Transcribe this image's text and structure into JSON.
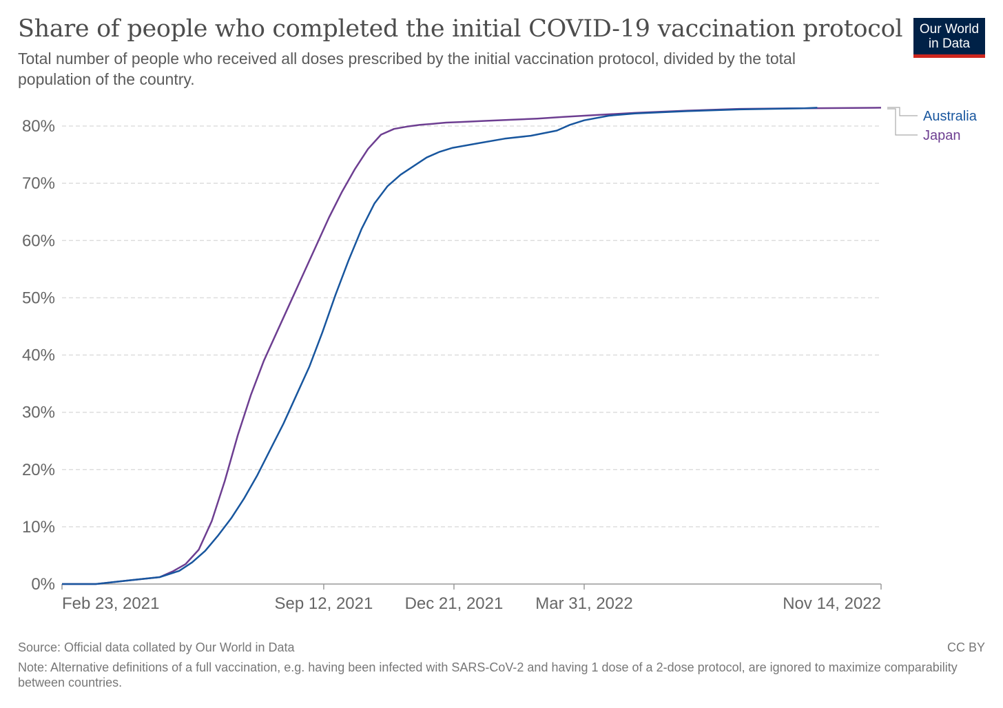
{
  "header": {
    "title": "Share of people who completed the initial COVID-19 vaccination protocol",
    "subtitle": "Total number of people who received all doses prescribed by the initial vaccination protocol, divided by the total population of the country."
  },
  "logo": {
    "line1": "Our World",
    "line2": "in Data"
  },
  "footer": {
    "source": "Source: Official data collated by Our World in Data",
    "license": "CC BY",
    "note": "Note: Alternative definitions of a full vaccination, e.g. having been infected with SARS-CoV-2 and having 1 dose of a 2-dose protocol, are ignored to maximize comparability between countries."
  },
  "colors": {
    "australia": "#18569e",
    "japan": "#6d3e91",
    "grid": "#dddddd",
    "axis": "#999999",
    "text": "#666666"
  },
  "chart_data": {
    "type": "line",
    "title": "Share of people who completed the initial COVID-19 vaccination protocol",
    "xlabel": "",
    "ylabel": "",
    "x_unit": "days since Feb 23, 2021",
    "xlim": [
      0,
      629
    ],
    "ylim": [
      0,
      80
    ],
    "grid": true,
    "y_ticks": [
      0,
      10,
      20,
      30,
      40,
      50,
      60,
      70,
      80
    ],
    "y_tick_labels": [
      "0%",
      "10%",
      "20%",
      "30%",
      "40%",
      "50%",
      "60%",
      "70%",
      "80%"
    ],
    "x_ticks": [
      0,
      201,
      301,
      401,
      629
    ],
    "x_tick_labels": [
      "Feb 23, 2021",
      "Sep 12, 2021",
      "Dec 21, 2021",
      "Mar 31, 2022",
      "Nov 14, 2022"
    ],
    "legend_position": "right",
    "series": [
      {
        "name": "Japan",
        "color": "#6d3e91",
        "x": [
          0,
          26,
          50,
          75,
          85,
          95,
          105,
          115,
          125,
          135,
          145,
          155,
          165,
          175,
          185,
          195,
          205,
          215,
          225,
          235,
          245,
          255,
          265,
          275,
          285,
          295,
          305,
          325,
          345,
          365,
          385,
          401,
          440,
          480,
          520,
          570,
          629
        ],
        "y": [
          0,
          0,
          0.6,
          1.2,
          2.2,
          3.5,
          6,
          11,
          18,
          26,
          33,
          39,
          44,
          49,
          54,
          59,
          64,
          68.5,
          72.5,
          76,
          78.5,
          79.5,
          79.9,
          80.2,
          80.4,
          80.6,
          80.7,
          80.9,
          81.1,
          81.3,
          81.6,
          81.8,
          82.3,
          82.7,
          83,
          83.1,
          83.2
        ]
      },
      {
        "name": "Australia",
        "color": "#18569e",
        "x": [
          0,
          26,
          50,
          75,
          90,
          100,
          110,
          120,
          130,
          140,
          150,
          160,
          170,
          180,
          190,
          200,
          210,
          220,
          230,
          240,
          250,
          260,
          270,
          280,
          290,
          300,
          320,
          340,
          360,
          380,
          390,
          401,
          420,
          440,
          480,
          520,
          570,
          580
        ],
        "y": [
          0,
          0,
          0.6,
          1.2,
          2.3,
          3.8,
          5.8,
          8.5,
          11.5,
          15,
          19,
          23.5,
          28,
          33,
          38,
          44,
          50.5,
          56.5,
          62,
          66.5,
          69.5,
          71.5,
          73,
          74.5,
          75.5,
          76.2,
          77,
          77.8,
          78.3,
          79.2,
          80.2,
          81,
          81.8,
          82.2,
          82.6,
          82.9,
          83.1,
          83.2
        ]
      }
    ]
  }
}
